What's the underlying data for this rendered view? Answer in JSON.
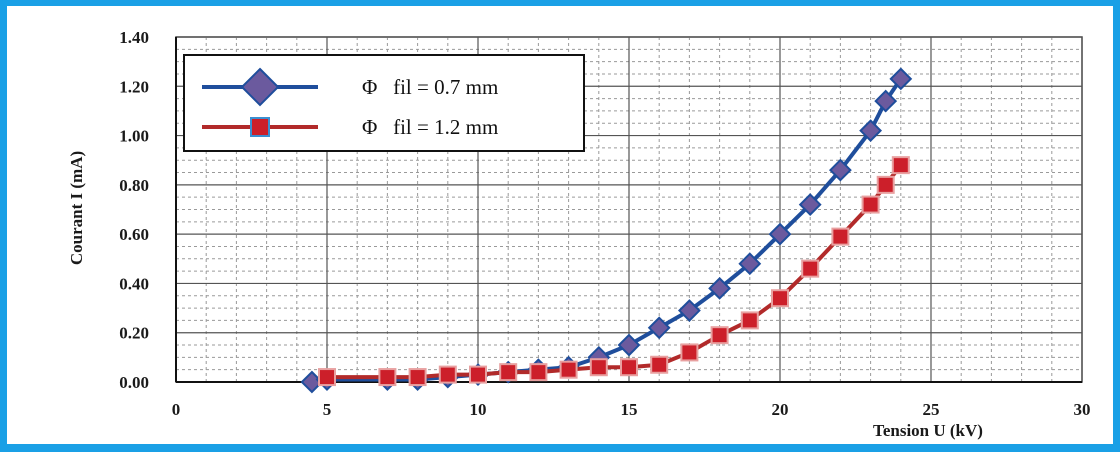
{
  "chart_data": {
    "type": "line",
    "title": "",
    "xlabel": "Tension U (kV)",
    "ylabel": "Courant I (mA)",
    "xlim": [
      0,
      30
    ],
    "ylim": [
      0,
      1.4
    ],
    "x_ticks": [
      "0",
      "5",
      "10",
      "15",
      "20",
      "25",
      "30"
    ],
    "y_ticks": [
      "0.00",
      "0.20",
      "0.40",
      "0.60",
      "0.80",
      "1.00",
      "1.20",
      "1.40"
    ],
    "grid": true,
    "legend_position": "top-left",
    "series": [
      {
        "name": "Φ   fil = 0.7 mm",
        "color": "#1f4e9c",
        "marker_color": "#6b5a9e",
        "marker": "diamond",
        "x": [
          4.5,
          5,
          7,
          8,
          9,
          10,
          11,
          12,
          13,
          14,
          15,
          16,
          17,
          18,
          19,
          20,
          21,
          22,
          23,
          23.5,
          24
        ],
        "y": [
          0.0,
          0.01,
          0.01,
          0.01,
          0.02,
          0.03,
          0.04,
          0.05,
          0.06,
          0.1,
          0.15,
          0.22,
          0.29,
          0.38,
          0.48,
          0.6,
          0.72,
          0.86,
          1.02,
          1.14,
          1.23
        ]
      },
      {
        "name": "Φ   fil = 1.2 mm",
        "color": "#b22a2a",
        "marker_color": "#cc1f2a",
        "marker": "square",
        "x": [
          5,
          7,
          8,
          9,
          10,
          11,
          12,
          13,
          14,
          15,
          16,
          17,
          18,
          19,
          20,
          21,
          22,
          23,
          23.5,
          24
        ],
        "y": [
          0.02,
          0.02,
          0.02,
          0.03,
          0.03,
          0.04,
          0.04,
          0.05,
          0.06,
          0.06,
          0.07,
          0.12,
          0.19,
          0.25,
          0.34,
          0.46,
          0.59,
          0.72,
          0.8,
          0.88
        ]
      }
    ]
  }
}
